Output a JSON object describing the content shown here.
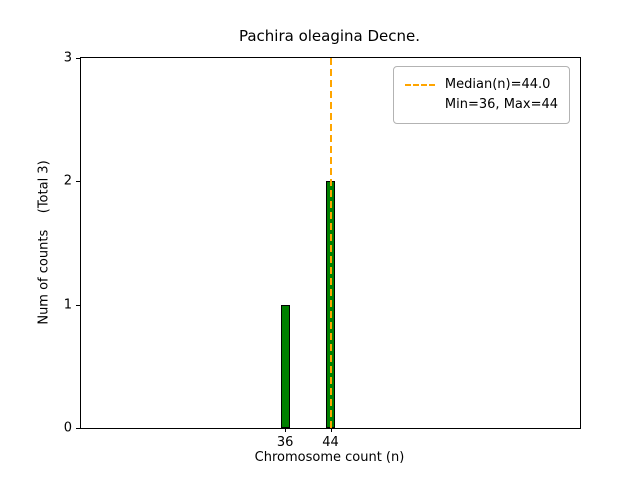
{
  "chart_data": {
    "type": "bar",
    "title": "Pachira oleagina Decne.",
    "xlabel": "Chromosome count (n)",
    "ylabel": "Num of counts    (Total 3)",
    "x": [
      36,
      44
    ],
    "counts": [
      1,
      2
    ],
    "bar_width_units": 1.6,
    "xlim": [
      0,
      88
    ],
    "ylim": [
      0,
      3
    ],
    "xticks": [
      36,
      44
    ],
    "yticks": [
      0,
      1,
      2,
      3
    ],
    "median": 44.0,
    "min": 36,
    "max": 44,
    "bar_fill": "#008000",
    "bar_edge": "#000000",
    "median_color": "#ffa500",
    "legend_entries": [
      "Median(n)=44.0",
      "Min=36, Max=44"
    ],
    "grid": false,
    "legend_position": "upper right"
  }
}
